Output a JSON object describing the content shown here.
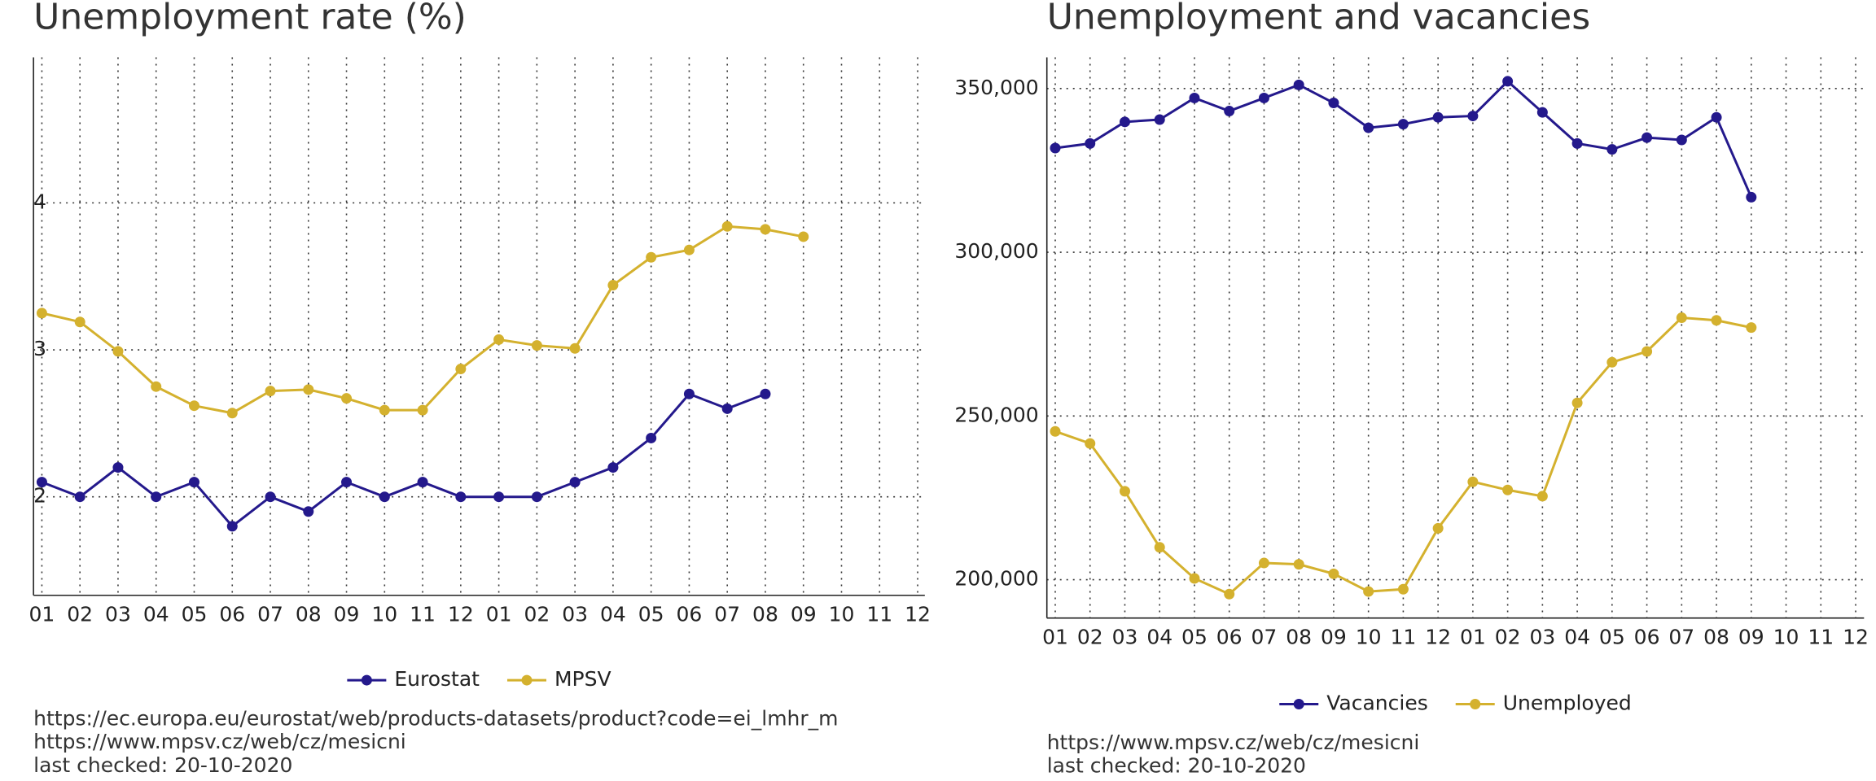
{
  "chart_data": [
    {
      "type": "line",
      "title": "Unemployment rate (%)",
      "categories": [
        "01",
        "02",
        "03",
        "04",
        "05",
        "06",
        "07",
        "08",
        "09",
        "10",
        "11",
        "12",
        "01",
        "02",
        "03",
        "04",
        "05",
        "06",
        "07",
        "08",
        "09",
        "10",
        "11",
        "12"
      ],
      "series": [
        {
          "name": "Eurostat",
          "color": "#24198c",
          "values": [
            2.1,
            2.0,
            2.2,
            2.0,
            2.1,
            1.8,
            2.0,
            1.9,
            2.1,
            2.0,
            2.1,
            2.0,
            2.0,
            2.0,
            2.1,
            2.2,
            2.4,
            2.7,
            2.6,
            2.7,
            null,
            null,
            null,
            null
          ]
        },
        {
          "name": "MPSV",
          "color": "#d4b12e",
          "values": [
            3.25,
            3.19,
            2.99,
            2.75,
            2.62,
            2.57,
            2.72,
            2.73,
            2.67,
            2.59,
            2.59,
            2.87,
            3.07,
            3.03,
            3.01,
            3.44,
            3.63,
            3.68,
            3.84,
            3.82,
            3.77,
            null,
            null,
            null
          ]
        }
      ],
      "ylim": [
        1.33,
        4.99
      ],
      "yticks": [
        2,
        3,
        4
      ],
      "grid": true,
      "legend": "bottom",
      "notes": [
        "https://ec.europa.eu/eurostat/web/products-datasets/product?code=ei_lmhr_m",
        "https://www.mpsv.cz/web/cz/mesicni",
        "last checked: 20-10-2020"
      ]
    },
    {
      "type": "line",
      "title": "Unemployment and vacancies",
      "categories": [
        "01",
        "02",
        "03",
        "04",
        "05",
        "06",
        "07",
        "08",
        "09",
        "10",
        "11",
        "12",
        "01",
        "02",
        "03",
        "04",
        "05",
        "06",
        "07",
        "08",
        "09",
        "10",
        "11",
        "12"
      ],
      "series": [
        {
          "name": "Vacancies",
          "color": "#24198c",
          "values": [
            331800,
            333200,
            339800,
            340500,
            347100,
            343100,
            347100,
            351100,
            345600,
            338000,
            339100,
            341200,
            341600,
            352200,
            342700,
            333200,
            331400,
            335000,
            334300,
            341200,
            316800,
            null,
            null,
            null
          ]
        },
        {
          "name": "Unemployed",
          "color": "#d4b12e",
          "values": [
            245300,
            241600,
            227000,
            209900,
            200400,
            195600,
            205100,
            204700,
            201800,
            196400,
            197100,
            215700,
            229900,
            227400,
            225500,
            254000,
            266400,
            269700,
            280000,
            279200,
            277000,
            null,
            null,
            null
          ]
        }
      ],
      "ylim": [
        188300,
        359500
      ],
      "yticks": [
        {
          "value": 200000,
          "label": "200,000"
        },
        {
          "value": 250000,
          "label": "250,000"
        },
        {
          "value": 300000,
          "label": "300,000"
        },
        {
          "value": 350000,
          "label": "350,000"
        }
      ],
      "grid": true,
      "legend": "bottom",
      "notes": [
        "https://www.mpsv.cz/web/cz/mesicni",
        "last checked: 20-10-2020"
      ]
    }
  ]
}
